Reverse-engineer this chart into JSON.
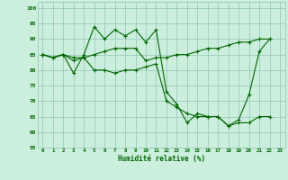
{
  "xlabel": "Humidité relative (%)",
  "background_color": "#cceedd",
  "grid_color": "#99ccbb",
  "line_color": "#006600",
  "xlim": [
    -0.5,
    23.5
  ],
  "ylim": [
    55,
    102
  ],
  "xticks": [
    0,
    1,
    2,
    3,
    4,
    5,
    6,
    7,
    8,
    9,
    10,
    11,
    12,
    13,
    14,
    15,
    16,
    17,
    18,
    19,
    20,
    21,
    22,
    23
  ],
  "yticks": [
    55,
    60,
    65,
    70,
    75,
    80,
    85,
    90,
    95,
    100
  ],
  "series": [
    [
      85,
      84,
      85,
      79,
      85,
      94,
      90,
      93,
      91,
      93,
      89,
      93,
      73,
      69,
      63,
      66,
      65,
      65,
      62,
      64,
      72,
      86,
      90
    ],
    [
      85,
      84,
      85,
      83,
      84,
      80,
      80,
      79,
      80,
      80,
      81,
      82,
      70,
      68,
      66,
      65,
      65,
      65,
      62,
      63,
      63,
      65,
      65
    ],
    [
      85,
      84,
      85,
      84,
      84,
      85,
      86,
      87,
      87,
      87,
      83,
      84,
      84,
      85,
      85,
      86,
      87,
      87,
      88,
      89,
      89,
      90,
      90
    ]
  ],
  "xvalues": [
    0,
    1,
    2,
    3,
    4,
    5,
    6,
    7,
    8,
    9,
    10,
    11,
    12,
    13,
    14,
    15,
    16,
    17,
    18,
    19,
    20,
    21,
    22
  ]
}
